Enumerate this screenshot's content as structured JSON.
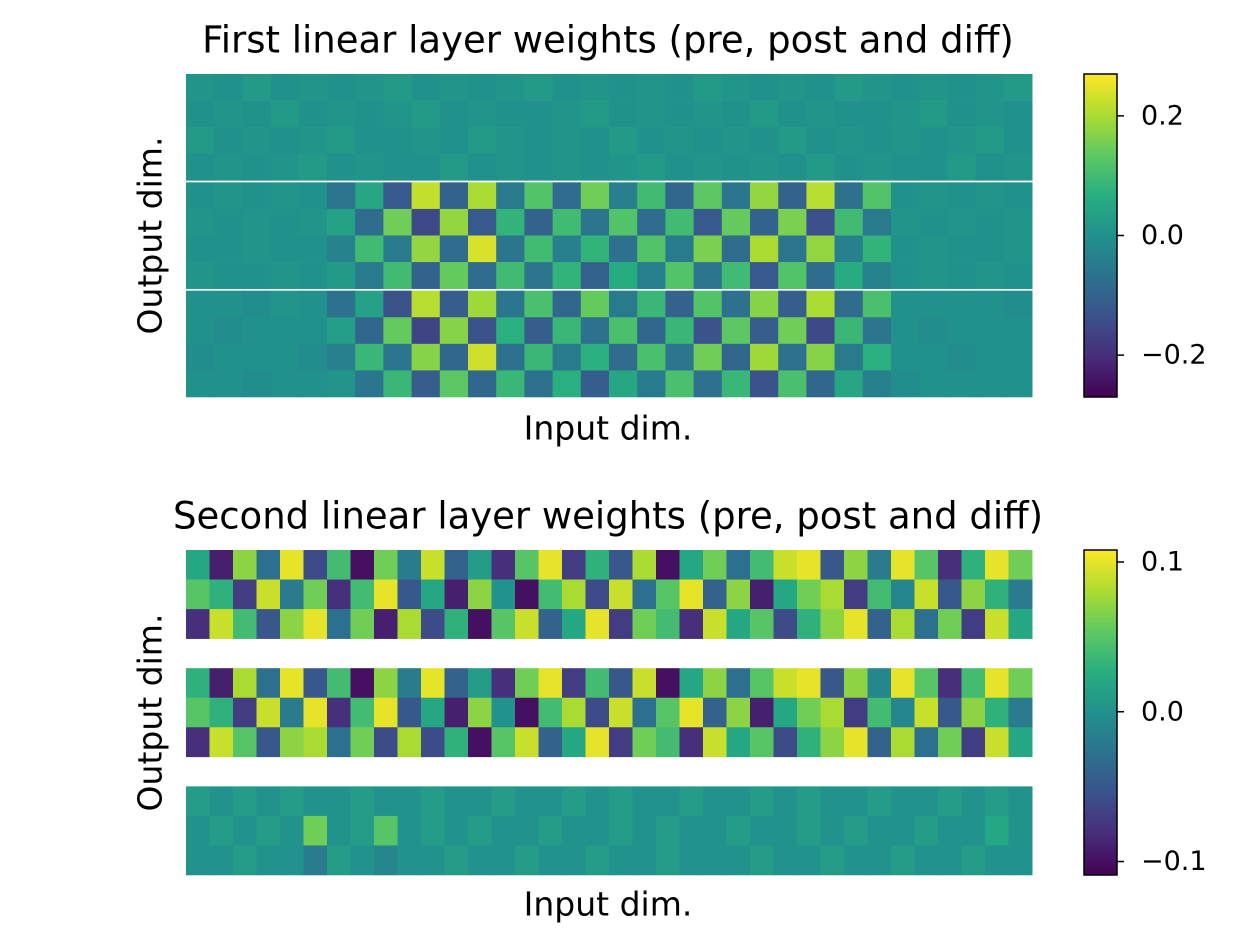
{
  "chart_data": [
    {
      "type": "heatmap",
      "title": "First linear layer weights (pre, post and diff)",
      "x_label": "Input dim.",
      "y_label": "Output dim.",
      "colormap": "viridis",
      "clim": [
        -0.27,
        0.27
      ],
      "cticks": [
        {
          "value": -0.2,
          "label": "−0.2"
        },
        {
          "value": 0,
          "label": "0.0"
        },
        0.2
      ],
      "values": [
        [
          0.01,
          0.0,
          0.02,
          0.0,
          0.01,
          0.0,
          0.01,
          0.02,
          0.0,
          0.01,
          0.0,
          0.01,
          0.02,
          0.0,
          0.01,
          0.0,
          0.01,
          0.0,
          0.02,
          0.01,
          0.0,
          0.01,
          0.0,
          0.02,
          0.01,
          0.0,
          0.01,
          0.0,
          0.01,
          0.02
        ],
        [
          0.0,
          0.01,
          0.0,
          0.02,
          0.0,
          0.01,
          0.0,
          0.01,
          0.02,
          0.0,
          0.01,
          0.0,
          0.0,
          0.01,
          0.02,
          0.0,
          0.01,
          0.0,
          0.01,
          0.0,
          0.02,
          0.0,
          0.01,
          0.0,
          0.0,
          0.01,
          0.02,
          0.0,
          0.01,
          0.0
        ],
        [
          0.02,
          0.0,
          0.01,
          0.0,
          0.01,
          0.02,
          0.0,
          0.0,
          0.01,
          0.0,
          0.02,
          0.01,
          0.0,
          0.01,
          0.0,
          0.02,
          0.0,
          0.01,
          0.0,
          0.01,
          0.0,
          0.02,
          0.0,
          0.01,
          0.0,
          0.01,
          0.0,
          0.01,
          0.02,
          0.0
        ],
        [
          0.0,
          0.01,
          0.0,
          0.01,
          0.02,
          0.0,
          0.01,
          0.0,
          0.0,
          0.02,
          0.0,
          0.01,
          0.0,
          0.01,
          0.0,
          0.01,
          0.02,
          0.0,
          0.01,
          0.0,
          0.01,
          0.0,
          0.02,
          0.0,
          0.01,
          0.0,
          0.0,
          0.02,
          0.0,
          0.01
        ],
        null,
        [
          0.0,
          0.01,
          0.0,
          0.01,
          0.0,
          -0.06,
          0.05,
          -0.12,
          0.22,
          -0.1,
          0.2,
          -0.05,
          0.12,
          -0.08,
          0.15,
          -0.04,
          0.1,
          -0.09,
          0.13,
          -0.06,
          0.18,
          -0.1,
          0.21,
          -0.07,
          0.12,
          0.0,
          0.01,
          0.0,
          0.01,
          0.0
        ],
        [
          0.01,
          0.0,
          0.01,
          0.0,
          0.01,
          0.04,
          -0.08,
          0.15,
          -0.15,
          0.18,
          -0.12,
          0.08,
          -0.1,
          0.1,
          -0.06,
          0.12,
          -0.08,
          0.1,
          -0.12,
          0.14,
          -0.1,
          0.16,
          -0.14,
          0.1,
          -0.05,
          0.01,
          0.0,
          0.01,
          0.0,
          0.01
        ],
        [
          0.0,
          0.0,
          0.01,
          0.0,
          0.0,
          -0.03,
          0.1,
          -0.05,
          0.18,
          -0.08,
          0.24,
          -0.06,
          0.1,
          -0.04,
          0.08,
          -0.07,
          0.12,
          -0.05,
          0.16,
          -0.08,
          0.2,
          -0.06,
          0.18,
          -0.04,
          0.08,
          0.0,
          0.01,
          0.0,
          0.0,
          0.01
        ],
        [
          0.01,
          0.0,
          0.0,
          0.01,
          0.0,
          0.02,
          -0.05,
          0.1,
          -0.1,
          0.14,
          -0.08,
          0.1,
          -0.06,
          0.08,
          -0.1,
          0.06,
          -0.04,
          0.12,
          -0.06,
          0.1,
          -0.12,
          0.12,
          -0.08,
          0.06,
          -0.03,
          0.0,
          0.01,
          0.0,
          0.01,
          0.0
        ],
        null,
        [
          0.0,
          0.0,
          -0.01,
          0.01,
          0.0,
          -0.07,
          0.04,
          -0.13,
          0.21,
          -0.11,
          0.19,
          -0.06,
          0.11,
          -0.09,
          0.14,
          -0.05,
          0.09,
          -0.1,
          0.12,
          -0.07,
          0.17,
          -0.11,
          0.2,
          -0.08,
          0.11,
          0.0,
          0.0,
          0.0,
          0.0,
          -0.01
        ],
        [
          0.0,
          -0.01,
          0.0,
          0.0,
          0.0,
          0.03,
          -0.09,
          0.14,
          -0.16,
          0.17,
          -0.13,
          0.07,
          -0.11,
          0.09,
          -0.07,
          0.11,
          -0.09,
          0.09,
          -0.13,
          0.13,
          -0.11,
          0.15,
          -0.15,
          0.09,
          -0.06,
          0.0,
          -0.01,
          0.0,
          0.0,
          0.0
        ],
        [
          -0.01,
          0.0,
          0.0,
          0.0,
          -0.01,
          -0.04,
          0.09,
          -0.06,
          0.17,
          -0.09,
          0.23,
          -0.07,
          0.09,
          -0.05,
          0.07,
          -0.08,
          0.11,
          -0.06,
          0.15,
          -0.09,
          0.19,
          -0.07,
          0.17,
          -0.05,
          0.07,
          0.0,
          0.0,
          -0.01,
          0.0,
          0.0
        ],
        [
          0.0,
          0.0,
          -0.01,
          0.0,
          0.0,
          0.01,
          -0.06,
          0.09,
          -0.11,
          0.13,
          -0.09,
          0.09,
          -0.07,
          0.07,
          -0.11,
          0.05,
          -0.05,
          0.11,
          -0.07,
          0.09,
          -0.13,
          0.11,
          -0.09,
          0.05,
          -0.04,
          -0.01,
          0.0,
          0.0,
          0.0,
          0.0
        ]
      ]
    },
    {
      "type": "heatmap",
      "title": "Second linear layer weights (pre, post and diff)",
      "x_label": "Input dim.",
      "y_label": "Output dim.",
      "colormap": "viridis",
      "clim": [
        -0.109,
        0.108
      ],
      "cticks": [
        {
          "value": -0.1,
          "label": "−0.1"
        },
        {
          "value": 0,
          "label": "0.0"
        },
        0.1
      ],
      "values": [
        [
          0.02,
          -0.09,
          0.07,
          -0.03,
          0.1,
          -0.06,
          0.04,
          -0.1,
          0.06,
          -0.02,
          0.09,
          -0.04,
          0.01,
          -0.08,
          0.05,
          0.1,
          -0.07,
          0.03,
          -0.05,
          0.08,
          -0.1,
          0.02,
          0.06,
          -0.03,
          0.04,
          0.09,
          0.1,
          -0.05,
          0.07,
          -0.02,
          0.1,
          0.05,
          -0.08,
          0.03,
          0.1,
          0.06
        ],
        [
          0.05,
          0.03,
          -0.07,
          0.09,
          -0.02,
          0.06,
          -0.08,
          0.04,
          0.1,
          -0.05,
          0.02,
          -0.09,
          0.07,
          0.0,
          -0.1,
          0.04,
          0.08,
          -0.06,
          0.09,
          -0.03,
          0.05,
          0.1,
          -0.04,
          0.07,
          -0.09,
          0.02,
          0.06,
          0.08,
          -0.07,
          0.04,
          -0.01,
          0.09,
          -0.05,
          0.07,
          0.03,
          -0.02
        ],
        [
          -0.08,
          0.09,
          0.04,
          -0.05,
          0.07,
          0.1,
          -0.03,
          0.06,
          -0.09,
          0.08,
          -0.06,
          0.03,
          -0.1,
          0.05,
          0.09,
          -0.04,
          0.02,
          0.1,
          -0.07,
          0.06,
          0.04,
          -0.08,
          0.09,
          0.02,
          0.05,
          -0.06,
          0.03,
          0.07,
          0.1,
          -0.04,
          0.08,
          -0.03,
          0.06,
          -0.07,
          0.09,
          0.02
        ],
        null,
        [
          0.03,
          -0.09,
          0.08,
          -0.03,
          0.1,
          -0.05,
          0.04,
          -0.1,
          0.07,
          -0.02,
          0.1,
          -0.04,
          0.01,
          -0.08,
          0.06,
          0.1,
          -0.07,
          0.04,
          -0.05,
          0.09,
          -0.1,
          0.02,
          0.07,
          -0.03,
          0.05,
          0.09,
          0.1,
          -0.05,
          0.07,
          -0.01,
          0.1,
          0.05,
          -0.08,
          0.04,
          0.1,
          0.06
        ],
        [
          0.05,
          0.03,
          -0.07,
          0.09,
          -0.02,
          0.1,
          -0.08,
          0.04,
          0.1,
          -0.05,
          0.02,
          -0.09,
          0.07,
          0.0,
          -0.1,
          0.04,
          0.08,
          -0.06,
          0.09,
          -0.03,
          0.05,
          0.1,
          -0.04,
          0.07,
          -0.09,
          0.02,
          0.06,
          0.08,
          -0.07,
          0.04,
          -0.01,
          0.09,
          -0.05,
          0.07,
          0.03,
          -0.02
        ],
        [
          -0.08,
          0.09,
          0.05,
          -0.05,
          0.07,
          0.08,
          -0.03,
          0.06,
          -0.06,
          0.08,
          -0.06,
          0.03,
          -0.1,
          0.05,
          0.09,
          -0.04,
          0.02,
          0.1,
          -0.07,
          0.06,
          0.04,
          -0.08,
          0.09,
          0.02,
          0.05,
          -0.06,
          0.03,
          0.07,
          0.1,
          -0.04,
          0.08,
          -0.03,
          0.06,
          -0.07,
          0.09,
          0.02
        ],
        null,
        [
          0.01,
          0.0,
          0.01,
          0.0,
          0.01,
          0.0,
          0.0,
          0.01,
          0.0,
          0.0,
          0.01,
          0.0,
          0.0,
          0.01,
          0.0,
          0.0,
          0.01,
          0.0,
          0.01,
          0.0,
          0.0,
          0.01,
          0.0,
          0.0,
          0.01,
          0.0,
          0.01,
          0.0,
          0.0,
          0.01,
          0.0,
          0.0,
          0.01,
          0.0,
          0.01,
          0.0
        ],
        [
          0.0,
          0.01,
          0.0,
          0.01,
          0.0,
          0.06,
          0.0,
          0.01,
          0.05,
          0.0,
          0.01,
          0.0,
          0.01,
          0.0,
          0.0,
          0.01,
          0.0,
          0.0,
          0.01,
          0.0,
          0.01,
          0.0,
          0.0,
          0.01,
          0.0,
          0.0,
          0.01,
          0.0,
          0.01,
          0.0,
          0.0,
          0.01,
          0.0,
          0.0,
          0.02,
          0.0
        ],
        [
          0.0,
          0.0,
          0.01,
          0.0,
          0.0,
          -0.02,
          0.01,
          0.0,
          -0.01,
          0.0,
          0.0,
          0.01,
          0.0,
          0.0,
          0.01,
          0.0,
          0.0,
          0.01,
          0.0,
          0.0,
          0.01,
          0.0,
          0.0,
          0.0,
          0.01,
          0.0,
          0.0,
          0.01,
          0.0,
          0.0,
          0.01,
          0.0,
          0.0,
          0.01,
          0.0,
          0.0
        ]
      ]
    }
  ]
}
